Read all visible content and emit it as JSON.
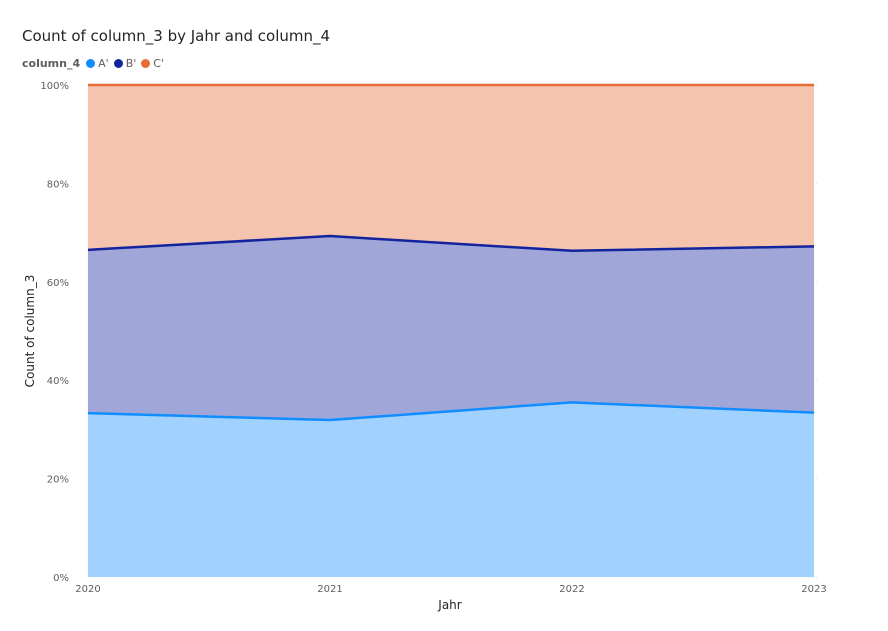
{
  "chart_data": {
    "type": "area",
    "stacked": true,
    "percent": true,
    "title": "Count of column_3 by Jahr and column_4",
    "xlabel": "Jahr",
    "ylabel": "Count of column_3",
    "legend_title": "column_4",
    "legend_position": "top-left",
    "x": [
      "2020",
      "2021",
      "2022",
      "2023"
    ],
    "y_ticks": [
      "0%",
      "20%",
      "40%",
      "60%",
      "80%",
      "100%"
    ],
    "ylim": [
      0,
      100
    ],
    "grid": true,
    "series": [
      {
        "name": "A'",
        "color": "#118DFF",
        "fill": "#A0D1FF",
        "values": [
          33.3,
          31.9,
          35.5,
          33.4
        ]
      },
      {
        "name": "B'",
        "color": "#12239E",
        "fill": "#A0A7D8",
        "values": [
          33.2,
          37.4,
          30.8,
          33.8
        ]
      },
      {
        "name": "C'",
        "color": "#E66C37",
        "fill": "#F5C4AF",
        "values": [
          33.5,
          30.7,
          33.7,
          32.8
        ]
      }
    ]
  }
}
